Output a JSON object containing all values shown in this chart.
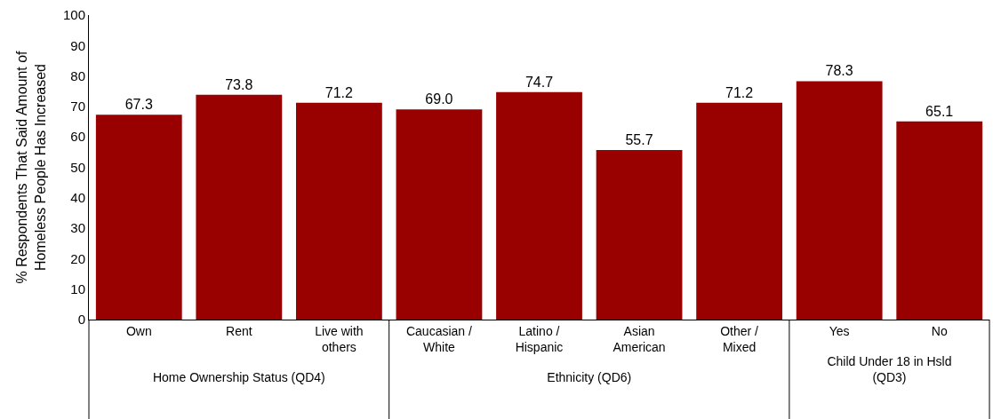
{
  "chart_data": [
    {
      "type": "bar",
      "xlabel": "Home Ownership Status (QD4)",
      "ylabel": "% Respondents That Said Amount of\nHomeless People Has Increased",
      "categories": [
        "Own",
        "Rent",
        "Live with\nothers"
      ],
      "values": [
        67.3,
        73.8,
        71.2
      ],
      "value_labels": [
        "67.3",
        "73.8",
        "71.2"
      ],
      "color": "#990000",
      "ylim": [
        0,
        100
      ],
      "yticks": [
        0,
        10,
        20,
        30,
        40,
        50,
        60,
        70,
        80,
        90,
        100
      ]
    },
    {
      "type": "bar",
      "xlabel": "Ethnicity (QD6)",
      "categories": [
        "Caucasian /\nWhite",
        "Latino /\nHispanic",
        "Asian\nAmerican",
        "Other /\nMixed"
      ],
      "values": [
        69.0,
        74.7,
        55.7,
        71.2
      ],
      "value_labels": [
        "69.0",
        "74.7",
        "55.7",
        "71.2"
      ],
      "color": "#990000",
      "ylim": [
        0,
        100
      ],
      "tick_labels": "x"
    },
    {
      "type": "bar",
      "xlabel": "Child Under 18 in Hsld\n(QD3)",
      "categories": [
        "Yes",
        "No"
      ],
      "values": [
        78.3,
        65.1
      ],
      "value_labels": [
        "78.3",
        "65.1"
      ],
      "color": "#990000",
      "ylim": [
        0,
        100
      ],
      "tick_labels": "x"
    }
  ]
}
